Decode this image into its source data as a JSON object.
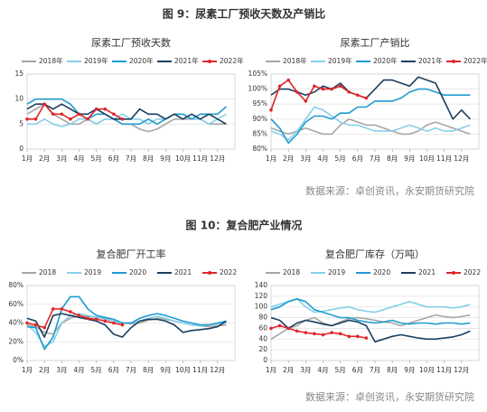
{
  "figure_titles": [
    "图 9：尿素工厂预收天数及产销比",
    "图 10：复合肥产业情况"
  ],
  "sources": [
    "数据来源：卓创资讯，永安期货研究院",
    "数据来源：卓创资讯，永安期货研究院"
  ],
  "chart_data": [
    {
      "type": "line",
      "title": "尿素工厂预收天数",
      "grid": true,
      "x": [
        1,
        1.5,
        2,
        2.5,
        3,
        3.5,
        4,
        4.5,
        5,
        5.5,
        6,
        6.5,
        7,
        7.5,
        8,
        8.5,
        9,
        9.5,
        10,
        10.5,
        11,
        11.5,
        12,
        12.5
      ],
      "xlim": [
        1,
        13
      ],
      "xticks": [
        {
          "value": 1,
          "label": "1月"
        },
        {
          "value": 2,
          "label": "2月"
        },
        {
          "value": 3,
          "label": "3月"
        },
        {
          "value": 4,
          "label": "4月"
        },
        {
          "value": 5,
          "label": "5月"
        },
        {
          "value": 6,
          "label": "6月"
        },
        {
          "value": 7,
          "label": "7月"
        },
        {
          "value": 8,
          "label": "8月"
        },
        {
          "value": 9,
          "label": "9月"
        },
        {
          "value": 10,
          "label": "10月"
        },
        {
          "value": 11,
          "label": "11月"
        },
        {
          "value": 12,
          "label": "12月"
        }
      ],
      "ylim": [
        0,
        15
      ],
      "yticks": [
        0,
        5,
        10,
        15
      ],
      "series": [
        {
          "name": "2018年",
          "color": "#a6a6a6",
          "values": [
            7,
            8,
            9,
            7,
            6,
            5,
            5,
            6,
            5,
            6,
            6,
            5,
            5,
            4,
            3.5,
            4,
            5,
            6,
            6,
            6,
            6,
            5,
            5,
            5
          ]
        },
        {
          "name": "2019年",
          "color": "#86d0ea",
          "values": [
            5,
            5,
            6,
            5,
            4.5,
            5,
            6,
            6,
            5,
            6,
            6,
            7,
            6,
            6,
            5,
            6,
            6,
            7,
            7,
            6,
            6,
            5,
            6,
            7
          ]
        },
        {
          "name": "2020年",
          "color": "#1f9bd0",
          "values": [
            9,
            10,
            10,
            10,
            10,
            9,
            7,
            6,
            7,
            7,
            6,
            5,
            5,
            5,
            6,
            5,
            6,
            7,
            7,
            6,
            7,
            7,
            7,
            8.5
          ]
        },
        {
          "name": "2021年",
          "color": "#1b3f5e",
          "values": [
            8,
            9,
            9,
            8,
            9,
            8,
            7,
            7,
            8,
            7,
            6,
            6,
            6,
            8,
            7,
            7,
            6,
            7,
            6,
            7,
            6,
            7,
            6,
            5
          ]
        },
        {
          "name": "2022年",
          "color": "#e0262b",
          "values": [
            6,
            6,
            9,
            7,
            7,
            6,
            7,
            6,
            8,
            8,
            7,
            6,
            null,
            null,
            null,
            null,
            null,
            null,
            null,
            null,
            null,
            null,
            null,
            null
          ]
        }
      ]
    },
    {
      "type": "line",
      "title": "尿素工厂产销比",
      "grid": true,
      "x": [
        1,
        1.5,
        2,
        2.5,
        3,
        3.5,
        4,
        4.5,
        5,
        5.5,
        6,
        6.5,
        7,
        7.5,
        8,
        8.5,
        9,
        9.5,
        10,
        10.5,
        11,
        11.5,
        12,
        12.5
      ],
      "xlim": [
        1,
        13
      ],
      "xticks": [
        {
          "value": 1,
          "label": "1月"
        },
        {
          "value": 2,
          "label": "2月"
        },
        {
          "value": 3,
          "label": "3月"
        },
        {
          "value": 4,
          "label": "4月"
        },
        {
          "value": 5,
          "label": "5月"
        },
        {
          "value": 6,
          "label": "6月"
        },
        {
          "value": 7,
          "label": "7月"
        },
        {
          "value": 8,
          "label": "8月"
        },
        {
          "value": 9,
          "label": "9月"
        },
        {
          "value": 10,
          "label": "10月"
        },
        {
          "value": 11,
          "label": "11月"
        },
        {
          "value": 12,
          "label": "12月"
        }
      ],
      "ylim": [
        80,
        105
      ],
      "yticks": [
        {
          "value": 80,
          "label": "80%"
        },
        {
          "value": 85,
          "label": "85%"
        },
        {
          "value": 90,
          "label": "90%"
        },
        {
          "value": 95,
          "label": "95%"
        },
        {
          "value": 100,
          "label": "100%"
        },
        {
          "value": 105,
          "label": "105%"
        }
      ],
      "series": [
        {
          "name": "2018年",
          "color": "#a6a6a6",
          "values": [
            87,
            86,
            85,
            86,
            87,
            86,
            85,
            85,
            88,
            90,
            89,
            88,
            88,
            87,
            86,
            85,
            85,
            86,
            88,
            89,
            88,
            87,
            86,
            85
          ]
        },
        {
          "name": "2019年",
          "color": "#86d0ea",
          "values": [
            86,
            85,
            83,
            86,
            90,
            94,
            93,
            91,
            89,
            88,
            88,
            87,
            86,
            86,
            86,
            87,
            88,
            87,
            86,
            87,
            86,
            86,
            87,
            88
          ]
        },
        {
          "name": "2020年",
          "color": "#1f9bd0",
          "values": [
            90,
            87,
            82,
            85,
            89,
            91,
            91,
            90,
            92,
            92,
            94,
            94,
            96,
            96,
            96,
            97,
            99,
            100,
            100,
            99,
            98,
            98,
            98,
            98
          ]
        },
        {
          "name": "2021年",
          "color": "#1b3f5e",
          "values": [
            98,
            100,
            100,
            99,
            98,
            99,
            101,
            100,
            102,
            99,
            98,
            97,
            100,
            103,
            103,
            102,
            101,
            104,
            103,
            102,
            96,
            90,
            93,
            90
          ]
        },
        {
          "name": "2022年",
          "color": "#e0262b",
          "values": [
            93,
            101,
            103,
            99,
            96,
            101,
            100,
            100,
            101,
            99,
            98,
            97,
            null,
            null,
            null,
            null,
            null,
            null,
            null,
            null,
            null,
            null,
            null,
            null
          ]
        }
      ]
    },
    {
      "type": "line",
      "title": "复合肥厂开工率",
      "grid": true,
      "x": [
        1,
        1.5,
        2,
        2.5,
        3,
        3.5,
        4,
        4.5,
        5,
        5.5,
        6,
        6.5,
        7,
        7.5,
        8,
        8.5,
        9,
        9.5,
        10,
        10.5,
        11,
        11.5,
        12,
        12.5
      ],
      "xlim": [
        1,
        13
      ],
      "xticks": [
        {
          "value": 1,
          "label": "1月"
        },
        {
          "value": 2,
          "label": "2月"
        },
        {
          "value": 3,
          "label": "3月"
        },
        {
          "value": 4,
          "label": "4月"
        },
        {
          "value": 5,
          "label": "5月"
        },
        {
          "value": 6,
          "label": "6月"
        },
        {
          "value": 7,
          "label": "7月"
        },
        {
          "value": 8,
          "label": "8月"
        },
        {
          "value": 9,
          "label": "9月"
        },
        {
          "value": 10,
          "label": "10月"
        },
        {
          "value": 11,
          "label": "11月"
        },
        {
          "value": 12,
          "label": "12月"
        }
      ],
      "ylim": [
        0,
        80
      ],
      "yticks": [
        {
          "value": 0,
          "label": "0%"
        },
        {
          "value": 20,
          "label": "20%"
        },
        {
          "value": 40,
          "label": "40%"
        },
        {
          "value": 60,
          "label": "60%"
        },
        {
          "value": 80,
          "label": "80%"
        }
      ],
      "series": [
        {
          "name": "2018",
          "color": "#a6a6a6",
          "values": [
            38,
            36,
            30,
            28,
            40,
            45,
            48,
            47,
            46,
            44,
            42,
            40,
            39,
            40,
            43,
            45,
            44,
            42,
            40,
            38,
            37,
            36,
            37,
            38
          ]
        },
        {
          "name": "2019",
          "color": "#86d0ea",
          "values": [
            38,
            30,
            15,
            20,
            40,
            48,
            50,
            48,
            46,
            45,
            42,
            40,
            40,
            42,
            45,
            47,
            45,
            42,
            40,
            38,
            37,
            38,
            39,
            40
          ]
        },
        {
          "name": "2020",
          "color": "#1f9bd0",
          "values": [
            36,
            35,
            12,
            25,
            55,
            68,
            68,
            55,
            48,
            46,
            44,
            40,
            40,
            45,
            48,
            50,
            48,
            45,
            42,
            40,
            38,
            38,
            40,
            42
          ]
        },
        {
          "name": "2021",
          "color": "#1b3f5e",
          "values": [
            45,
            42,
            25,
            48,
            50,
            48,
            46,
            44,
            42,
            38,
            28,
            25,
            35,
            42,
            44,
            44,
            42,
            38,
            30,
            32,
            33,
            34,
            36,
            42
          ]
        },
        {
          "name": "2022",
          "color": "#e0262b",
          "values": [
            40,
            38,
            35,
            55,
            55,
            52,
            48,
            45,
            44,
            42,
            40,
            38,
            null,
            null,
            null,
            null,
            null,
            null,
            null,
            null,
            null,
            null,
            null,
            null
          ]
        }
      ]
    },
    {
      "type": "line",
      "title": "复合肥厂库存（万吨）",
      "grid": true,
      "x": [
        1,
        1.5,
        2,
        2.5,
        3,
        3.5,
        4,
        4.5,
        5,
        5.5,
        6,
        6.5,
        7,
        7.5,
        8,
        8.5,
        9,
        9.5,
        10,
        10.5,
        11,
        11.5,
        12,
        12.5
      ],
      "xlim": [
        1,
        13
      ],
      "xticks": [
        {
          "value": 1,
          "label": "1月"
        },
        {
          "value": 2,
          "label": "2月"
        },
        {
          "value": 3,
          "label": "3月"
        },
        {
          "value": 4,
          "label": "4月"
        },
        {
          "value": 5,
          "label": "5月"
        },
        {
          "value": 6,
          "label": "6月"
        },
        {
          "value": 7,
          "label": "7月"
        },
        {
          "value": 8,
          "label": "8月"
        },
        {
          "value": 9,
          "label": "9月"
        },
        {
          "value": 10,
          "label": "10月"
        },
        {
          "value": 11,
          "label": "11月"
        },
        {
          "value": 12,
          "label": "12月"
        }
      ],
      "ylim": [
        0,
        140
      ],
      "yticks": [
        0,
        20,
        40,
        60,
        80,
        100,
        120,
        140
      ],
      "series": [
        {
          "name": "2018",
          "color": "#a6a6a6",
          "values": [
            40,
            50,
            60,
            65,
            75,
            80,
            70,
            65,
            72,
            78,
            80,
            78,
            75,
            72,
            70,
            65,
            70,
            75,
            80,
            85,
            82,
            80,
            82,
            85
          ]
        },
        {
          "name": "2019",
          "color": "#86d0ea",
          "values": [
            100,
            105,
            110,
            115,
            100,
            90,
            92,
            95,
            98,
            100,
            95,
            92,
            90,
            95,
            100,
            105,
            110,
            105,
            100,
            100,
            100,
            98,
            100,
            105
          ]
        },
        {
          "name": "2020",
          "color": "#1f9bd0",
          "values": [
            95,
            100,
            110,
            115,
            110,
            95,
            90,
            85,
            80,
            80,
            75,
            72,
            70,
            72,
            75,
            70,
            68,
            70,
            70,
            68,
            70,
            70,
            68,
            70
          ]
        },
        {
          "name": "2021",
          "color": "#1b3f5e",
          "values": [
            80,
            75,
            60,
            70,
            75,
            72,
            68,
            65,
            70,
            75,
            72,
            65,
            35,
            40,
            45,
            48,
            45,
            42,
            40,
            40,
            42,
            44,
            48,
            55
          ]
        },
        {
          "name": "2022",
          "color": "#e0262b",
          "values": [
            60,
            65,
            60,
            55,
            52,
            50,
            48,
            52,
            50,
            45,
            45,
            42,
            null,
            null,
            null,
            null,
            null,
            null,
            null,
            null,
            null,
            null,
            null,
            null
          ]
        }
      ]
    }
  ]
}
